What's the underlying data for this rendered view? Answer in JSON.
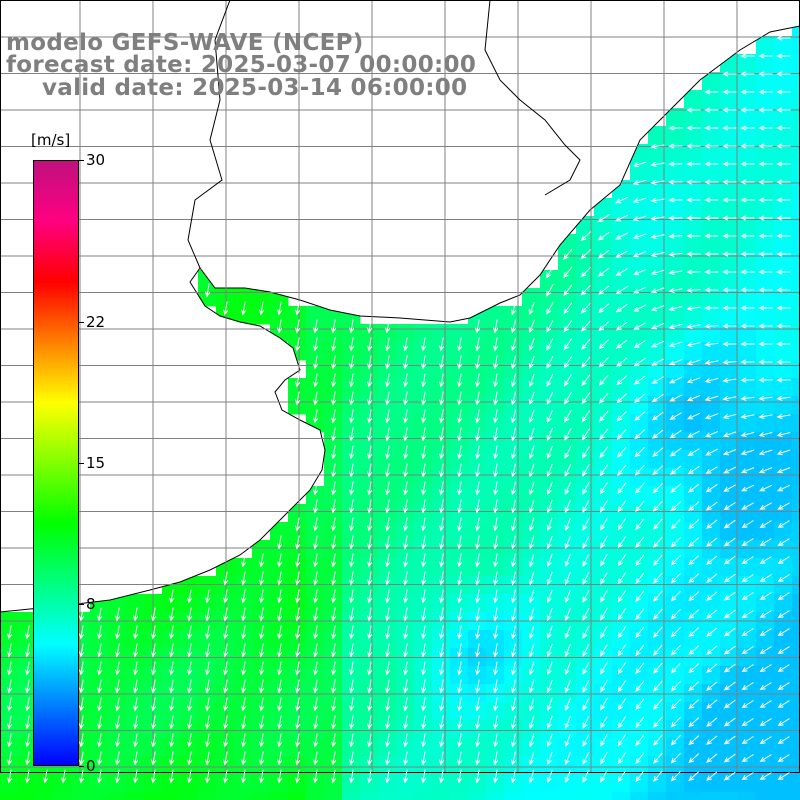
{
  "title": {
    "line1": "modelo GEFS-WAVE (NCEP)",
    "line2": "forecast date: 2025-03-07 00:00:00",
    "line3": "valid date: 2025-03-14 06:00:00"
  },
  "legend": {
    "unit": "[m/s]",
    "min": 0,
    "max": 30,
    "ticks": [
      {
        "value": 30,
        "label": "30"
      },
      {
        "value": 22,
        "label": "22"
      },
      {
        "value": 15,
        "label": "15"
      },
      {
        "value": 8,
        "label": "8"
      },
      {
        "value": 0,
        "label": "0"
      }
    ],
    "colormap": [
      "#0000ff",
      "#0080ff",
      "#00ffff",
      "#00ff80",
      "#00ff00",
      "#80ff00",
      "#ffff00",
      "#ff8000",
      "#ff0000",
      "#ff0080",
      "#c0107f"
    ]
  },
  "colors": {
    "land": "#ffffff",
    "coast": "#000000",
    "grid": "#808080",
    "arrows": "#ffffff",
    "title": "#7f7f7f"
  },
  "map": {
    "field": "wind speed",
    "arrow_direction": "southward / south-westward, turning westward in the east",
    "speed_range_ms": [
      4,
      12
    ]
  }
}
